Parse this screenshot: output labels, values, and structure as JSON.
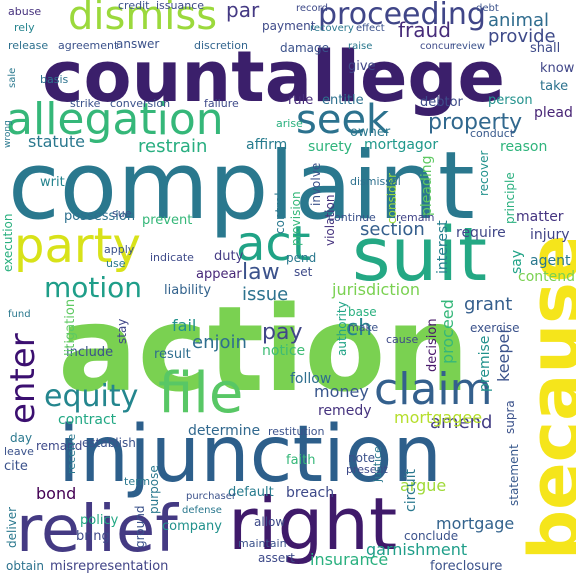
{
  "words": [
    {
      "text": "action",
      "color": "#7ad151"
    },
    {
      "text": "complaint",
      "color": "#2a788e"
    },
    {
      "text": "countallege",
      "color": "#3b1f6b"
    },
    {
      "text": "injunction",
      "color": "#2d5f8b"
    },
    {
      "text": "suit",
      "color": "#24a884"
    },
    {
      "text": "right",
      "color": "#3f1a6a"
    },
    {
      "text": "because",
      "color": "#f5e51b"
    },
    {
      "text": "relief",
      "color": "#443a83"
    },
    {
      "text": "party",
      "color": "#d8e219"
    },
    {
      "text": "file",
      "color": "#58c765"
    },
    {
      "text": "allegation",
      "color": "#35b779"
    },
    {
      "text": "seek",
      "color": "#2c728e"
    },
    {
      "text": "claim",
      "color": "#34608d"
    },
    {
      "text": "act",
      "color": "#20a386"
    },
    {
      "text": "dismiss",
      "color": "#9bd93c"
    },
    {
      "text": "proceeding",
      "color": "#404688"
    },
    {
      "text": "enter",
      "color": "#3b0f70"
    },
    {
      "text": "equity",
      "color": "#24868e"
    },
    {
      "text": "motion",
      "color": "#1f9e89"
    },
    {
      "text": "enjoin",
      "color": "#2e6e8e"
    },
    {
      "text": "property",
      "color": "#31688e"
    },
    {
      "text": "restrain",
      "color": "#28ae80"
    },
    {
      "text": "statute",
      "color": "#2a788e"
    },
    {
      "text": "section",
      "color": "#355f8d"
    },
    {
      "text": "law",
      "color": "#3b528b"
    },
    {
      "text": "fraud",
      "color": "#472c7a"
    },
    {
      "text": "animal",
      "color": "#2f6c8e"
    },
    {
      "text": "provide",
      "color": "#3e4a89"
    },
    {
      "text": "jurisdiction",
      "color": "#7ad151"
    },
    {
      "text": "pay",
      "color": "#404688"
    },
    {
      "text": "issue",
      "color": "#2c728e"
    },
    {
      "text": "ch",
      "color": "#25848e"
    },
    {
      "text": "fail",
      "color": "#21918c"
    },
    {
      "text": "money",
      "color": "#39568c"
    },
    {
      "text": "amend",
      "color": "#433e85"
    },
    {
      "text": "grant",
      "color": "#355f8d"
    },
    {
      "text": "contract",
      "color": "#22a884"
    },
    {
      "text": "mortgagee",
      "color": "#b5de2b"
    },
    {
      "text": "garnishment",
      "color": "#1f9e89"
    },
    {
      "text": "insurance",
      "color": "#2ab07f"
    },
    {
      "text": "bond",
      "color": "#440154"
    },
    {
      "text": "mortgage",
      "color": "#33638d"
    },
    {
      "text": "foreclosure",
      "color": "#3b528b"
    },
    {
      "text": "misrepresentation",
      "color": "#414487"
    },
    {
      "text": "obtain",
      "color": "#2c728e"
    },
    {
      "text": "proceed",
      "color": "#35b779"
    },
    {
      "text": "remedy",
      "color": "#46337e"
    },
    {
      "text": "follow",
      "color": "#2e6e8e"
    },
    {
      "text": "determine",
      "color": "#31688e"
    },
    {
      "text": "policy",
      "color": "#22a884"
    },
    {
      "text": "company",
      "color": "#21918c"
    },
    {
      "text": "breach",
      "color": "#3e4a89"
    },
    {
      "text": "default",
      "color": "#287c8e"
    },
    {
      "text": "argue",
      "color": "#a0da39"
    },
    {
      "text": "circuit",
      "color": "#2a788e"
    },
    {
      "text": "statement",
      "color": "#38598c"
    },
    {
      "text": "decision",
      "color": "#48186a"
    },
    {
      "text": "premise",
      "color": "#21918c"
    },
    {
      "text": "keeper",
      "color": "#3b528b"
    },
    {
      "text": "surety",
      "color": "#2fb47c"
    },
    {
      "text": "mortgagor",
      "color": "#1f988b"
    },
    {
      "text": "pleading",
      "color": "#5ec962"
    },
    {
      "text": "interest",
      "color": "#277f8e"
    },
    {
      "text": "require",
      "color": "#404688"
    },
    {
      "text": "matter",
      "color": "#453581"
    },
    {
      "text": "injury",
      "color": "#414487"
    },
    {
      "text": "agent",
      "color": "#2a788e"
    },
    {
      "text": "contend",
      "color": "#7ad151"
    },
    {
      "text": "say",
      "color": "#20a386"
    },
    {
      "text": "notice",
      "color": "#3dbc74"
    },
    {
      "text": "duty",
      "color": "#443b84"
    },
    {
      "text": "appear",
      "color": "#482878"
    },
    {
      "text": "liability",
      "color": "#33638d"
    },
    {
      "text": "possession",
      "color": "#2d708e"
    },
    {
      "text": "prevent",
      "color": "#35b779"
    },
    {
      "text": "result",
      "color": "#2e6e8e"
    },
    {
      "text": "include",
      "color": "#3b528b"
    },
    {
      "text": "writ",
      "color": "#25848e"
    },
    {
      "text": "execution",
      "color": "#2ab07f"
    },
    {
      "text": "litigation",
      "color": "#5ec962"
    },
    {
      "text": "stay",
      "color": "#404688"
    },
    {
      "text": "affirm",
      "color": "#287c8e"
    },
    {
      "text": "rule",
      "color": "#472d7b"
    },
    {
      "text": "entitle",
      "color": "#2d708e"
    },
    {
      "text": "debtor",
      "color": "#3e4c8a"
    },
    {
      "text": "person",
      "color": "#21918c"
    },
    {
      "text": "plead",
      "color": "#482576"
    },
    {
      "text": "take",
      "color": "#2c728e"
    },
    {
      "text": "know",
      "color": "#404688"
    },
    {
      "text": "shall",
      "color": "#3e4a89"
    },
    {
      "text": "give",
      "color": "#404688"
    },
    {
      "text": "owner",
      "color": "#2a788e"
    },
    {
      "text": "damage",
      "color": "#3b528b"
    },
    {
      "text": "payment",
      "color": "#3e4a89"
    },
    {
      "text": "answer",
      "color": "#3b528b"
    },
    {
      "text": "discretion",
      "color": "#32658e"
    },
    {
      "text": "agreement",
      "color": "#3b528b"
    },
    {
      "text": "release",
      "color": "#2d708e"
    },
    {
      "text": "rely",
      "color": "#25848e"
    },
    {
      "text": "abuse",
      "color": "#46327e"
    },
    {
      "text": "credit",
      "color": "#3b528b"
    },
    {
      "text": "issuance",
      "color": "#3e4a89"
    },
    {
      "text": "par",
      "color": "#443983"
    },
    {
      "text": "basis",
      "color": "#2c728e"
    },
    {
      "text": "strike",
      "color": "#3b528b"
    },
    {
      "text": "conversion",
      "color": "#3b528b"
    },
    {
      "text": "failure",
      "color": "#3e4a89"
    },
    {
      "text": "arise",
      "color": "#2ab07f"
    },
    {
      "text": "involve",
      "color": "#3b528b"
    },
    {
      "text": "violation",
      "color": "#46337e"
    },
    {
      "text": "provision",
      "color": "#35b779"
    },
    {
      "text": "control",
      "color": "#2a788e"
    },
    {
      "text": "consider",
      "color": "#9bd93c"
    },
    {
      "text": "continue",
      "color": "#3b528b"
    },
    {
      "text": "remain",
      "color": "#414487"
    },
    {
      "text": "principle",
      "color": "#2ab07f"
    },
    {
      "text": "recover",
      "color": "#21918c"
    },
    {
      "text": "conduct",
      "color": "#38598c"
    },
    {
      "text": "dismissal",
      "color": "#2d708e"
    },
    {
      "text": "reason",
      "color": "#2fb47c"
    },
    {
      "text": "apply",
      "color": "#3b528b"
    },
    {
      "text": "use",
      "color": "#2a788e"
    },
    {
      "text": "indicate",
      "color": "#3e4a89"
    },
    {
      "text": "sue",
      "color": "#3b528b"
    },
    {
      "text": "pend",
      "color": "#2a788e"
    },
    {
      "text": "set",
      "color": "#3e4a89"
    },
    {
      "text": "base",
      "color": "#2ab07f"
    },
    {
      "text": "make",
      "color": "#3b528b"
    },
    {
      "text": "cause",
      "color": "#3e4a89"
    },
    {
      "text": "authority",
      "color": "#20a386"
    },
    {
      "text": "exercise",
      "color": "#3b528b"
    },
    {
      "text": "establish",
      "color": "#3b528b"
    },
    {
      "text": "remand",
      "color": "#3e4a89"
    },
    {
      "text": "day",
      "color": "#2a788e"
    },
    {
      "text": "leave",
      "color": "#3b528b"
    },
    {
      "text": "cite",
      "color": "#3b528b"
    },
    {
      "text": "receive",
      "color": "#2a788e"
    },
    {
      "text": "bring",
      "color": "#3e4a89"
    },
    {
      "text": "deliver",
      "color": "#2a788e"
    },
    {
      "text": "ground",
      "color": "#3b528b"
    },
    {
      "text": "purpose",
      "color": "#2a788e"
    },
    {
      "text": "allow",
      "color": "#3e4a89"
    },
    {
      "text": "maintain",
      "color": "#3b528b"
    },
    {
      "text": "assert",
      "color": "#3e4a89"
    },
    {
      "text": "conclude",
      "color": "#3b528b"
    },
    {
      "text": "faith",
      "color": "#35b779"
    },
    {
      "text": "note",
      "color": "#3b528b"
    },
    {
      "text": "present",
      "color": "#3e4a89"
    },
    {
      "text": "justice",
      "color": "#2a788e"
    },
    {
      "text": "restitution",
      "color": "#3b528b"
    },
    {
      "text": "term",
      "color": "#2a788e"
    },
    {
      "text": "purchaser",
      "color": "#3b528b"
    },
    {
      "text": "defense",
      "color": "#2a788e"
    },
    {
      "text": "supra",
      "color": "#3b528b"
    },
    {
      "text": "fund",
      "color": "#2a788e"
    },
    {
      "text": "debt",
      "color": "#3b528b"
    },
    {
      "text": "record",
      "color": "#3e4a89"
    },
    {
      "text": "recovery",
      "color": "#2a788e"
    },
    {
      "text": "effect",
      "color": "#3b528b"
    },
    {
      "text": "concur",
      "color": "#3e4a89"
    },
    {
      "text": "review",
      "color": "#3b528b"
    },
    {
      "text": "raise",
      "color": "#2a788e"
    },
    {
      "text": "sale",
      "color": "#2a788e"
    },
    {
      "text": "wrong",
      "color": "#2a788e"
    }
  ]
}
